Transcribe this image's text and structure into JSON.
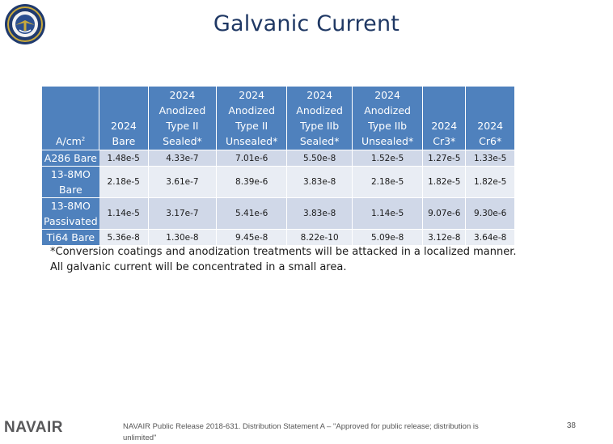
{
  "title": "Galvanic Current",
  "table": {
    "corner": "A/cm",
    "corner_sup": "2",
    "headers": [
      [
        "",
        "2024",
        "Bare"
      ],
      [
        "2024",
        "Anodized",
        "Type II",
        "Sealed*"
      ],
      [
        "2024",
        "Anodized",
        "Type II",
        "Unsealed*"
      ],
      [
        "2024",
        "Anodized",
        "Type IIb",
        "Sealed*"
      ],
      [
        "2024",
        "Anodized",
        "Type IIb",
        "Unsealed*"
      ],
      [
        "",
        "2024",
        "Cr3*"
      ],
      [
        "",
        "2024",
        "Cr6*"
      ]
    ],
    "rows": [
      {
        "label": [
          "A286 Bare"
        ],
        "values": [
          "1.48e-5",
          "4.33e-7",
          "7.01e-6",
          "5.50e-8",
          "1.52e-5",
          "1.27e-5",
          "1.33e-5"
        ]
      },
      {
        "label": [
          "13-8MO",
          "Bare"
        ],
        "values": [
          "2.18e-5",
          "3.61e-7",
          "8.39e-6",
          "3.83e-8",
          "2.18e-5",
          "1.82e-5",
          "1.82e-5"
        ]
      },
      {
        "label": [
          "13-8MO",
          "Passivated"
        ],
        "values": [
          "1.14e-5",
          "3.17e-7",
          "5.41e-6",
          "3.83e-8",
          "1.14e-5",
          "9.07e-6",
          "9.30e-6"
        ]
      },
      {
        "label": [
          "Ti64 Bare"
        ],
        "values": [
          "5.36e-8",
          "1.30e-8",
          "9.45e-8",
          "8.22e-10",
          "5.09e-8",
          "3.12e-8",
          "3.64e-8"
        ]
      }
    ]
  },
  "note": {
    "line1": "*Conversion coatings and anodization treatments will be attacked in a localized manner.",
    "line2": "All galvanic current will be concentrated in a small area."
  },
  "footer": {
    "logo": "NAVAIR",
    "release": "NAVAIR Public Release 2018-631. Distribution Statement A – \"Approved for public release; distribution is unlimited\"",
    "page": "38"
  }
}
